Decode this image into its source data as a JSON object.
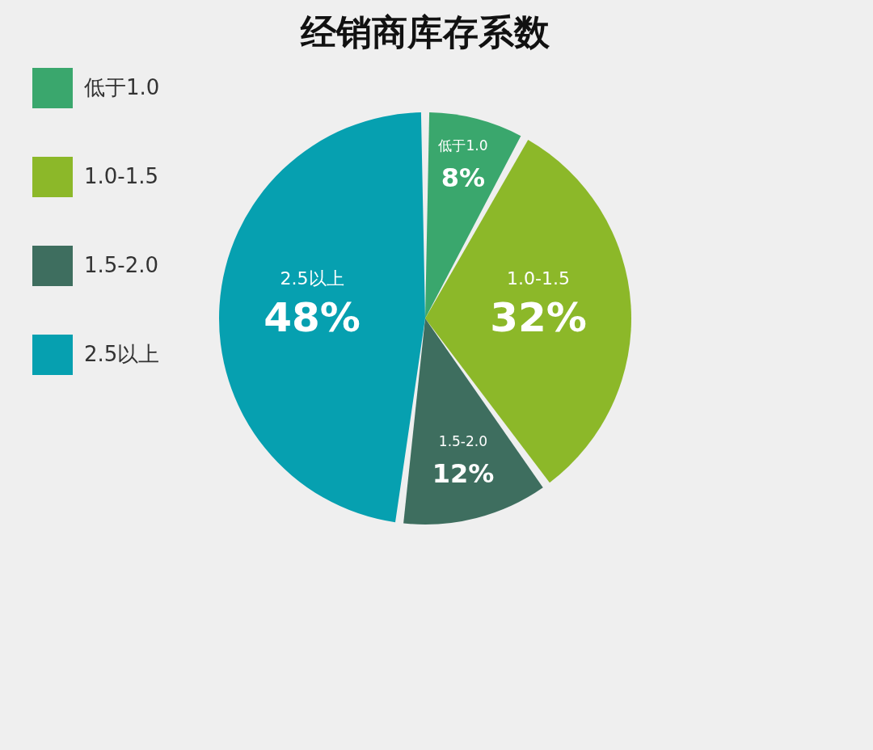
{
  "chart_data": {
    "type": "pie",
    "title": "经销商库存系数",
    "categories": [
      "低于1.0",
      "1.0-1.5",
      "1.5-2.0",
      "2.5以上"
    ],
    "values": [
      8,
      32,
      12,
      48
    ],
    "colors": [
      "#3aa76d",
      "#8cb829",
      "#3e6e5f",
      "#06a0b0"
    ],
    "value_labels": [
      "8%",
      "32%",
      "12%",
      "48%"
    ],
    "legend": "left"
  }
}
